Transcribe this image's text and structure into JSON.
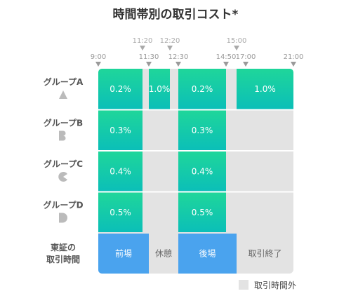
{
  "chart_data": {
    "type": "heatmap",
    "title": "時間帯別の取引コスト*",
    "time_axis": {
      "range": [
        "9:00",
        "21:00"
      ],
      "bottom_ticks": [
        "9:00",
        "11:30",
        "12:30",
        "14:50",
        "17:00",
        "21:00"
      ],
      "top_ticks": [
        "11:20",
        "12:20",
        "15:00"
      ]
    },
    "groups": [
      {
        "name": "グループA",
        "glyph": "triangle"
      },
      {
        "name": "グループB",
        "glyph": "b-shape"
      },
      {
        "name": "グループC",
        "glyph": "c-shape"
      },
      {
        "name": "グループD",
        "glyph": "d-shape"
      }
    ],
    "cost_blocks": [
      {
        "group": "グループA",
        "start": "9:00",
        "end": "11:20",
        "value": "0.2%"
      },
      {
        "group": "グループA",
        "start": "11:30",
        "end": "12:20",
        "value": "1.0%"
      },
      {
        "group": "グループA",
        "start": "12:30",
        "end": "14:50",
        "value": "0.2%"
      },
      {
        "group": "グループA",
        "start": "15:00",
        "end": "21:00",
        "value": "1.0%"
      },
      {
        "group": "グループB",
        "start": "9:00",
        "end": "11:20",
        "value": "0.3%"
      },
      {
        "group": "グループB",
        "start": "12:30",
        "end": "14:50",
        "value": "0.3%"
      },
      {
        "group": "グループC",
        "start": "9:00",
        "end": "11:20",
        "value": "0.4%"
      },
      {
        "group": "グループC",
        "start": "12:30",
        "end": "14:50",
        "value": "0.4%"
      },
      {
        "group": "グループD",
        "start": "9:00",
        "end": "11:20",
        "value": "0.5%"
      },
      {
        "group": "グループD",
        "start": "12:30",
        "end": "14:50",
        "value": "0.5%"
      }
    ],
    "session_row": {
      "label_line1": "東証の",
      "label_line2": "取引時間",
      "segments": [
        {
          "label": "前場",
          "start": "9:00",
          "end": "11:30",
          "active": true
        },
        {
          "label": "休憩",
          "start": "11:30",
          "end": "12:30",
          "active": false
        },
        {
          "label": "後場",
          "start": "12:30",
          "end": "15:00",
          "active": true
        },
        {
          "label": "取引終了",
          "start": "15:00",
          "end": "21:00",
          "active": false
        }
      ]
    },
    "legend": {
      "label": "取引時間外",
      "position": "bottom-right"
    },
    "colors": {
      "green_top": "#1fd69a",
      "green_bottom": "#0bbfb8",
      "blue": "#4aa3ee",
      "outside": "#e3e3e3",
      "tick": "#999999",
      "text": "#555555"
    }
  }
}
